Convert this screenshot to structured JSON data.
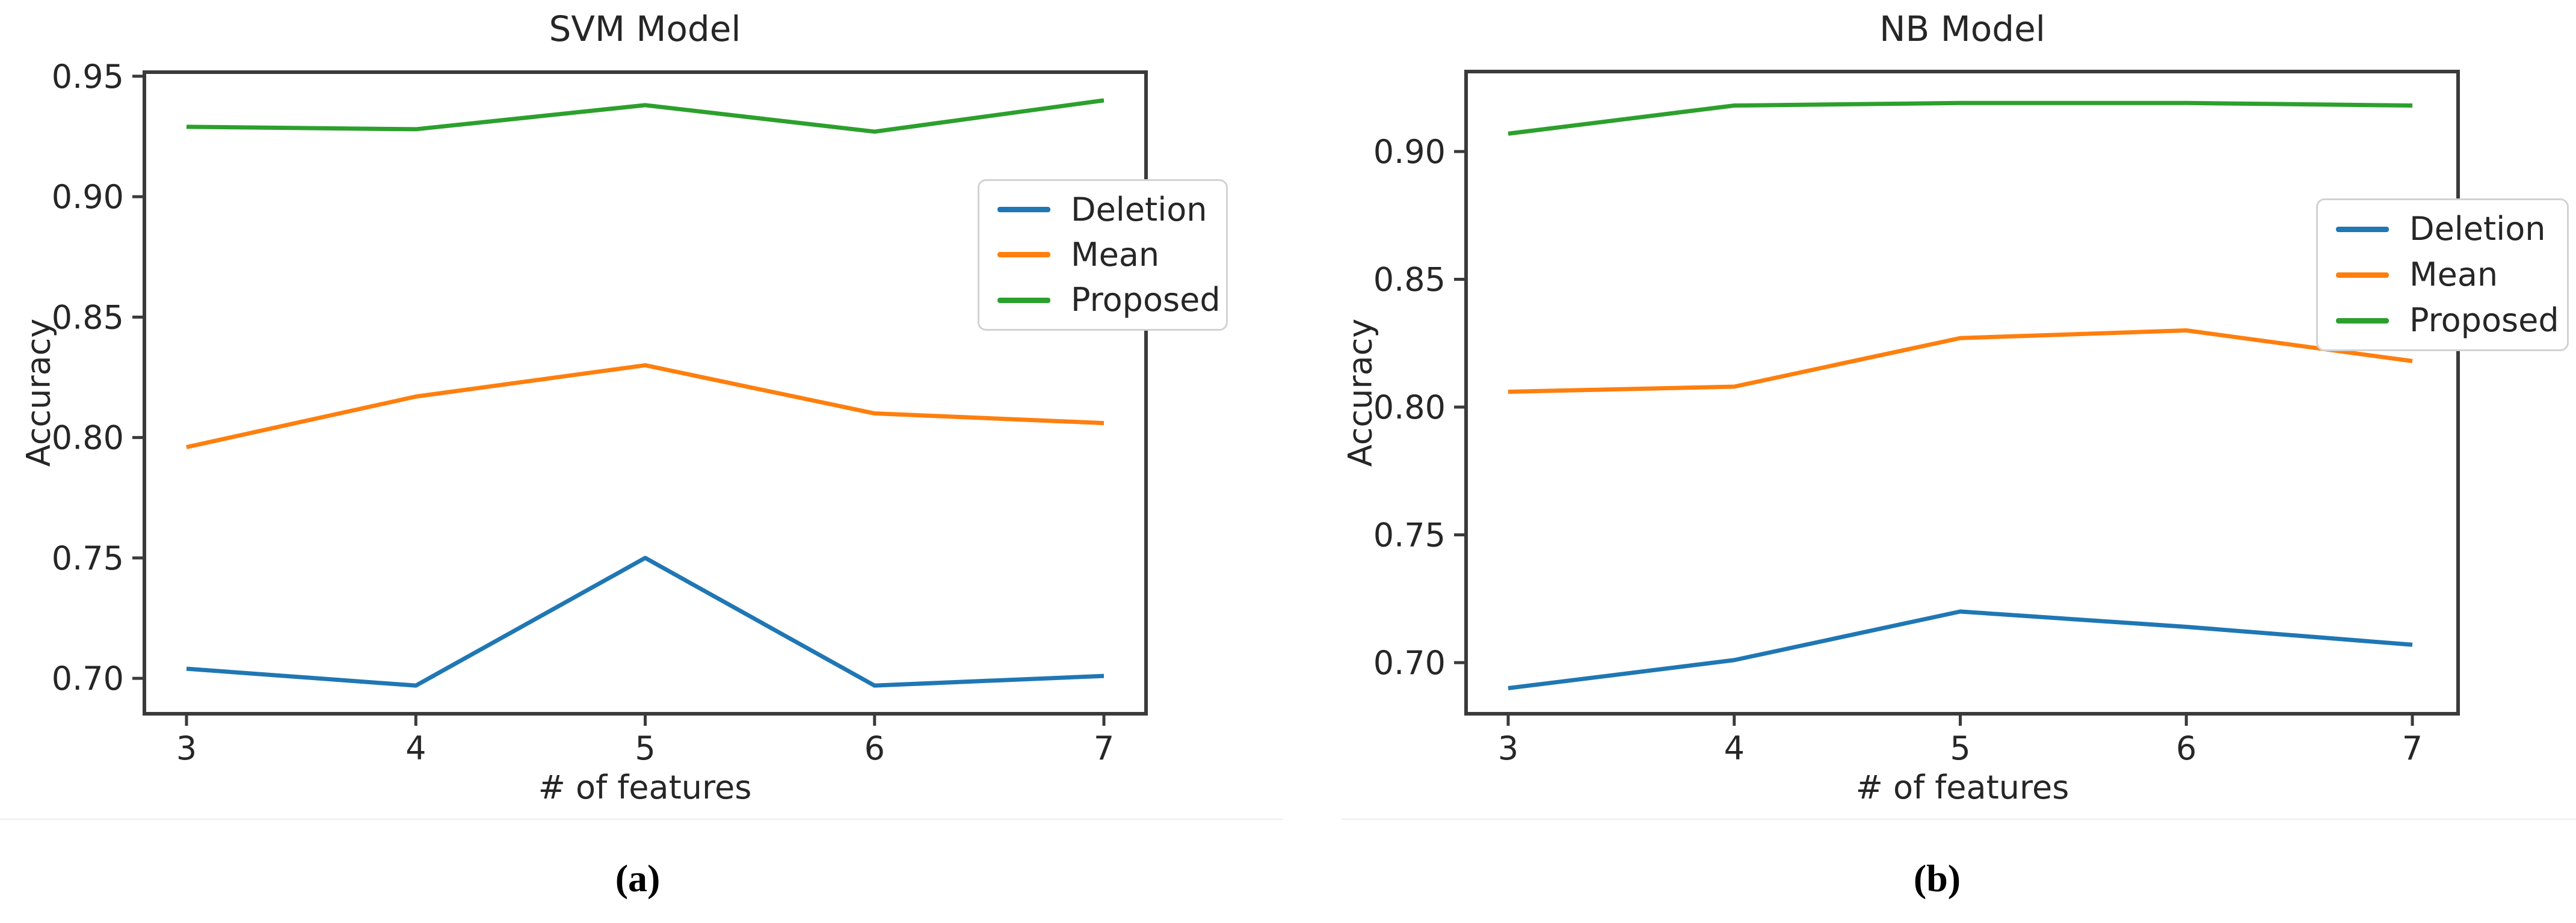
{
  "figure": {
    "background": "#ffffff",
    "text_color": "#262626",
    "spine_color": "#3a3a3a",
    "captions": {
      "left": "(a)",
      "right": "(b)"
    }
  },
  "chart_data": [
    {
      "type": "line",
      "title": "SVM Model",
      "xlabel": "# of features",
      "ylabel": "Accuracy",
      "x": [
        3,
        4,
        5,
        6,
        7
      ],
      "xticks": [
        3,
        4,
        5,
        6,
        7
      ],
      "yticks": [
        0.7,
        0.75,
        0.8,
        0.85,
        0.9,
        0.95
      ],
      "xlim": [
        2.8164,
        7.1836
      ],
      "ylim": [
        0.6853,
        0.9517
      ],
      "grid": false,
      "legend_position": "upper right, overhanging right spine",
      "series": [
        {
          "name": "Deletion",
          "color": "#1f77b4",
          "values": [
            0.704,
            0.697,
            0.75,
            0.697,
            0.701
          ]
        },
        {
          "name": "Mean",
          "color": "#ff7f0e",
          "values": [
            0.796,
            0.817,
            0.83,
            0.81,
            0.806
          ]
        },
        {
          "name": "Proposed",
          "color": "#2ca02c",
          "values": [
            0.929,
            0.928,
            0.938,
            0.927,
            0.94
          ]
        }
      ]
    },
    {
      "type": "line",
      "title": "NB Model",
      "xlabel": "# of features",
      "ylabel": "Accuracy",
      "x": [
        3,
        4,
        5,
        6,
        7
      ],
      "xticks": [
        3,
        4,
        5,
        6,
        7
      ],
      "yticks": [
        0.7,
        0.75,
        0.8,
        0.85,
        0.9
      ],
      "xlim": [
        2.8137,
        7.2023
      ],
      "ylim": [
        0.68,
        0.9313
      ],
      "grid": false,
      "legend_position": "upper right, overhanging right spine",
      "series": [
        {
          "name": "Deletion",
          "color": "#1f77b4",
          "values": [
            0.69,
            0.701,
            0.72,
            0.714,
            0.707
          ]
        },
        {
          "name": "Mean",
          "color": "#ff7f0e",
          "values": [
            0.806,
            0.808,
            0.827,
            0.83,
            0.818
          ]
        },
        {
          "name": "Proposed",
          "color": "#2ca02c",
          "values": [
            0.907,
            0.918,
            0.919,
            0.919,
            0.918
          ]
        }
      ]
    }
  ]
}
